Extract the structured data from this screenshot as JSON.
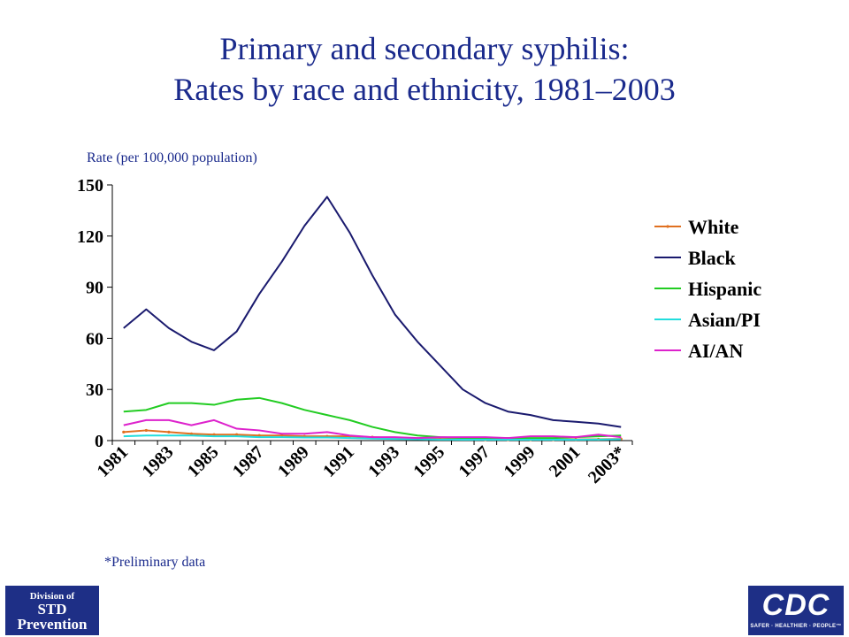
{
  "slide": {
    "title_line1": "Primary and secondary syphilis:",
    "title_line2": "Rates by race and ethnicity, 1981–2003",
    "footnote": "*Preliminary data"
  },
  "logos": {
    "std_line1": "Division of",
    "std_line2": "STD",
    "std_line3": "Prevention",
    "cdc_main": "CDC",
    "cdc_tagline": "SAFER · HEALTHIER · PEOPLE™"
  },
  "colors": {
    "title": "#1a2a8c",
    "axis": "#000000"
  },
  "chart_data": {
    "type": "line",
    "title": "Primary and secondary syphilis: Rates by race and ethnicity, 1981–2003",
    "xlabel": "",
    "ylabel": "Rate (per 100,000 population)",
    "ylim": [
      0,
      150
    ],
    "yticks": [
      0,
      30,
      60,
      90,
      120,
      150
    ],
    "x": [
      1981,
      1982,
      1983,
      1984,
      1985,
      1986,
      1987,
      1988,
      1989,
      1990,
      1991,
      1992,
      1993,
      1994,
      1995,
      1996,
      1997,
      1998,
      1999,
      2000,
      2001,
      2002,
      2003
    ],
    "xtick_labels": [
      "1981",
      "1983",
      "1985",
      "1987",
      "1989",
      "1991",
      "1993",
      "1995",
      "1997",
      "1999",
      "2001",
      "2003*"
    ],
    "grid": false,
    "legend_position": "right",
    "series": [
      {
        "name": "White",
        "color": "#e07020",
        "marker": "dot",
        "values": [
          5,
          6,
          5,
          4,
          3.5,
          3.5,
          3,
          3,
          2.5,
          2.5,
          2.5,
          2,
          1.5,
          1.2,
          1,
          0.8,
          0.6,
          0.6,
          0.6,
          0.6,
          0.7,
          0.8,
          1
        ]
      },
      {
        "name": "Black",
        "color": "#1a1a6e",
        "values": [
          66,
          77,
          66,
          58,
          53,
          64,
          86,
          105,
          126,
          143,
          122,
          97,
          74,
          58,
          44,
          30,
          22,
          17,
          15,
          12,
          11,
          10,
          8
        ]
      },
      {
        "name": "Hispanic",
        "color": "#22cc22",
        "values": [
          17,
          18,
          22,
          22,
          21,
          24,
          25,
          22,
          18,
          15,
          12,
          8,
          5,
          3,
          2,
          1.5,
          1.5,
          1.5,
          1.5,
          1.5,
          2,
          2.5,
          3
        ]
      },
      {
        "name": "Asian/PI",
        "color": "#22dddd",
        "values": [
          2.5,
          3,
          3,
          3,
          2.5,
          2.5,
          2,
          2,
          1.8,
          1.8,
          1.5,
          1.2,
          1,
          0.8,
          0.6,
          0.5,
          0.5,
          0.5,
          0.5,
          0.5,
          0.5,
          0.6,
          0.8
        ]
      },
      {
        "name": "AI/AN",
        "color": "#dd22cc",
        "values": [
          9,
          12,
          12,
          9,
          12,
          7,
          6,
          4,
          4,
          5,
          3,
          2,
          2,
          1.5,
          2,
          2,
          2,
          1.5,
          2.5,
          2.5,
          2,
          3.5,
          2
        ]
      }
    ]
  }
}
